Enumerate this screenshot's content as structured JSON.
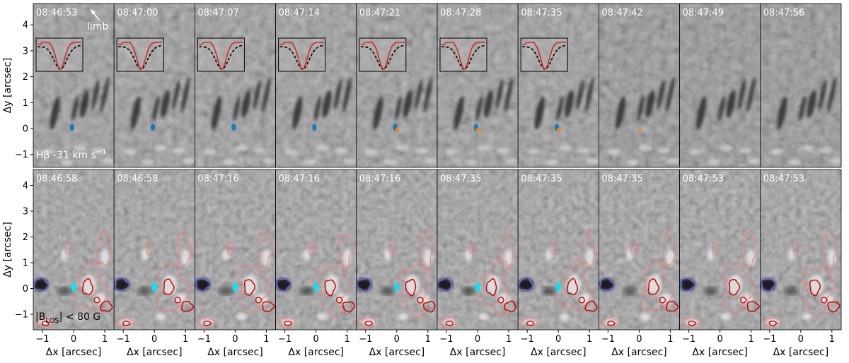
{
  "figure": {
    "top_row": {
      "timestamps": [
        "08:46:53",
        "08:47:00",
        "08:47:07",
        "08:47:14",
        "08:47:21",
        "08:47:28",
        "08:47:35",
        "08:47:42",
        "08:47:49",
        "08:47:56"
      ],
      "panel_label": "Hβ -31 km s",
      "panel_label_sup": "−1",
      "limb_label": "limb",
      "profile_insets": 7
    },
    "bottom_row": {
      "timestamps": [
        "08:46:58",
        "08:46:58",
        "08:47:16",
        "08:47:16",
        "08:47:16",
        "08:47:35",
        "08:47:35",
        "08:47:35",
        "08:47:53",
        "08:47:53"
      ],
      "panel_label_prefix": "|B",
      "panel_label_sub": "LOS",
      "panel_label_suffix": "| < 80 G"
    },
    "y_axis": {
      "title": "Δy [arcsec]",
      "ticks": [
        "4",
        "3",
        "2",
        "1",
        "0",
        "−1"
      ],
      "values": [
        4,
        3,
        2,
        1,
        0,
        -1
      ]
    },
    "x_axis": {
      "title": "Δx [arcsec]",
      "ticks": [
        "−1",
        "0",
        "1"
      ],
      "values": [
        -1,
        0,
        1
      ]
    },
    "colors": {
      "profile_line": "#d62728",
      "reference_profile": "#000000",
      "event_marker_blue": "#1f77b4",
      "event_marker_orange": "#ff7f0e",
      "contour_positive": "#d00000",
      "contour_positive_light": "#f08080",
      "contour_negative": "#7070ff",
      "footpoint": "#00e5ff"
    }
  }
}
